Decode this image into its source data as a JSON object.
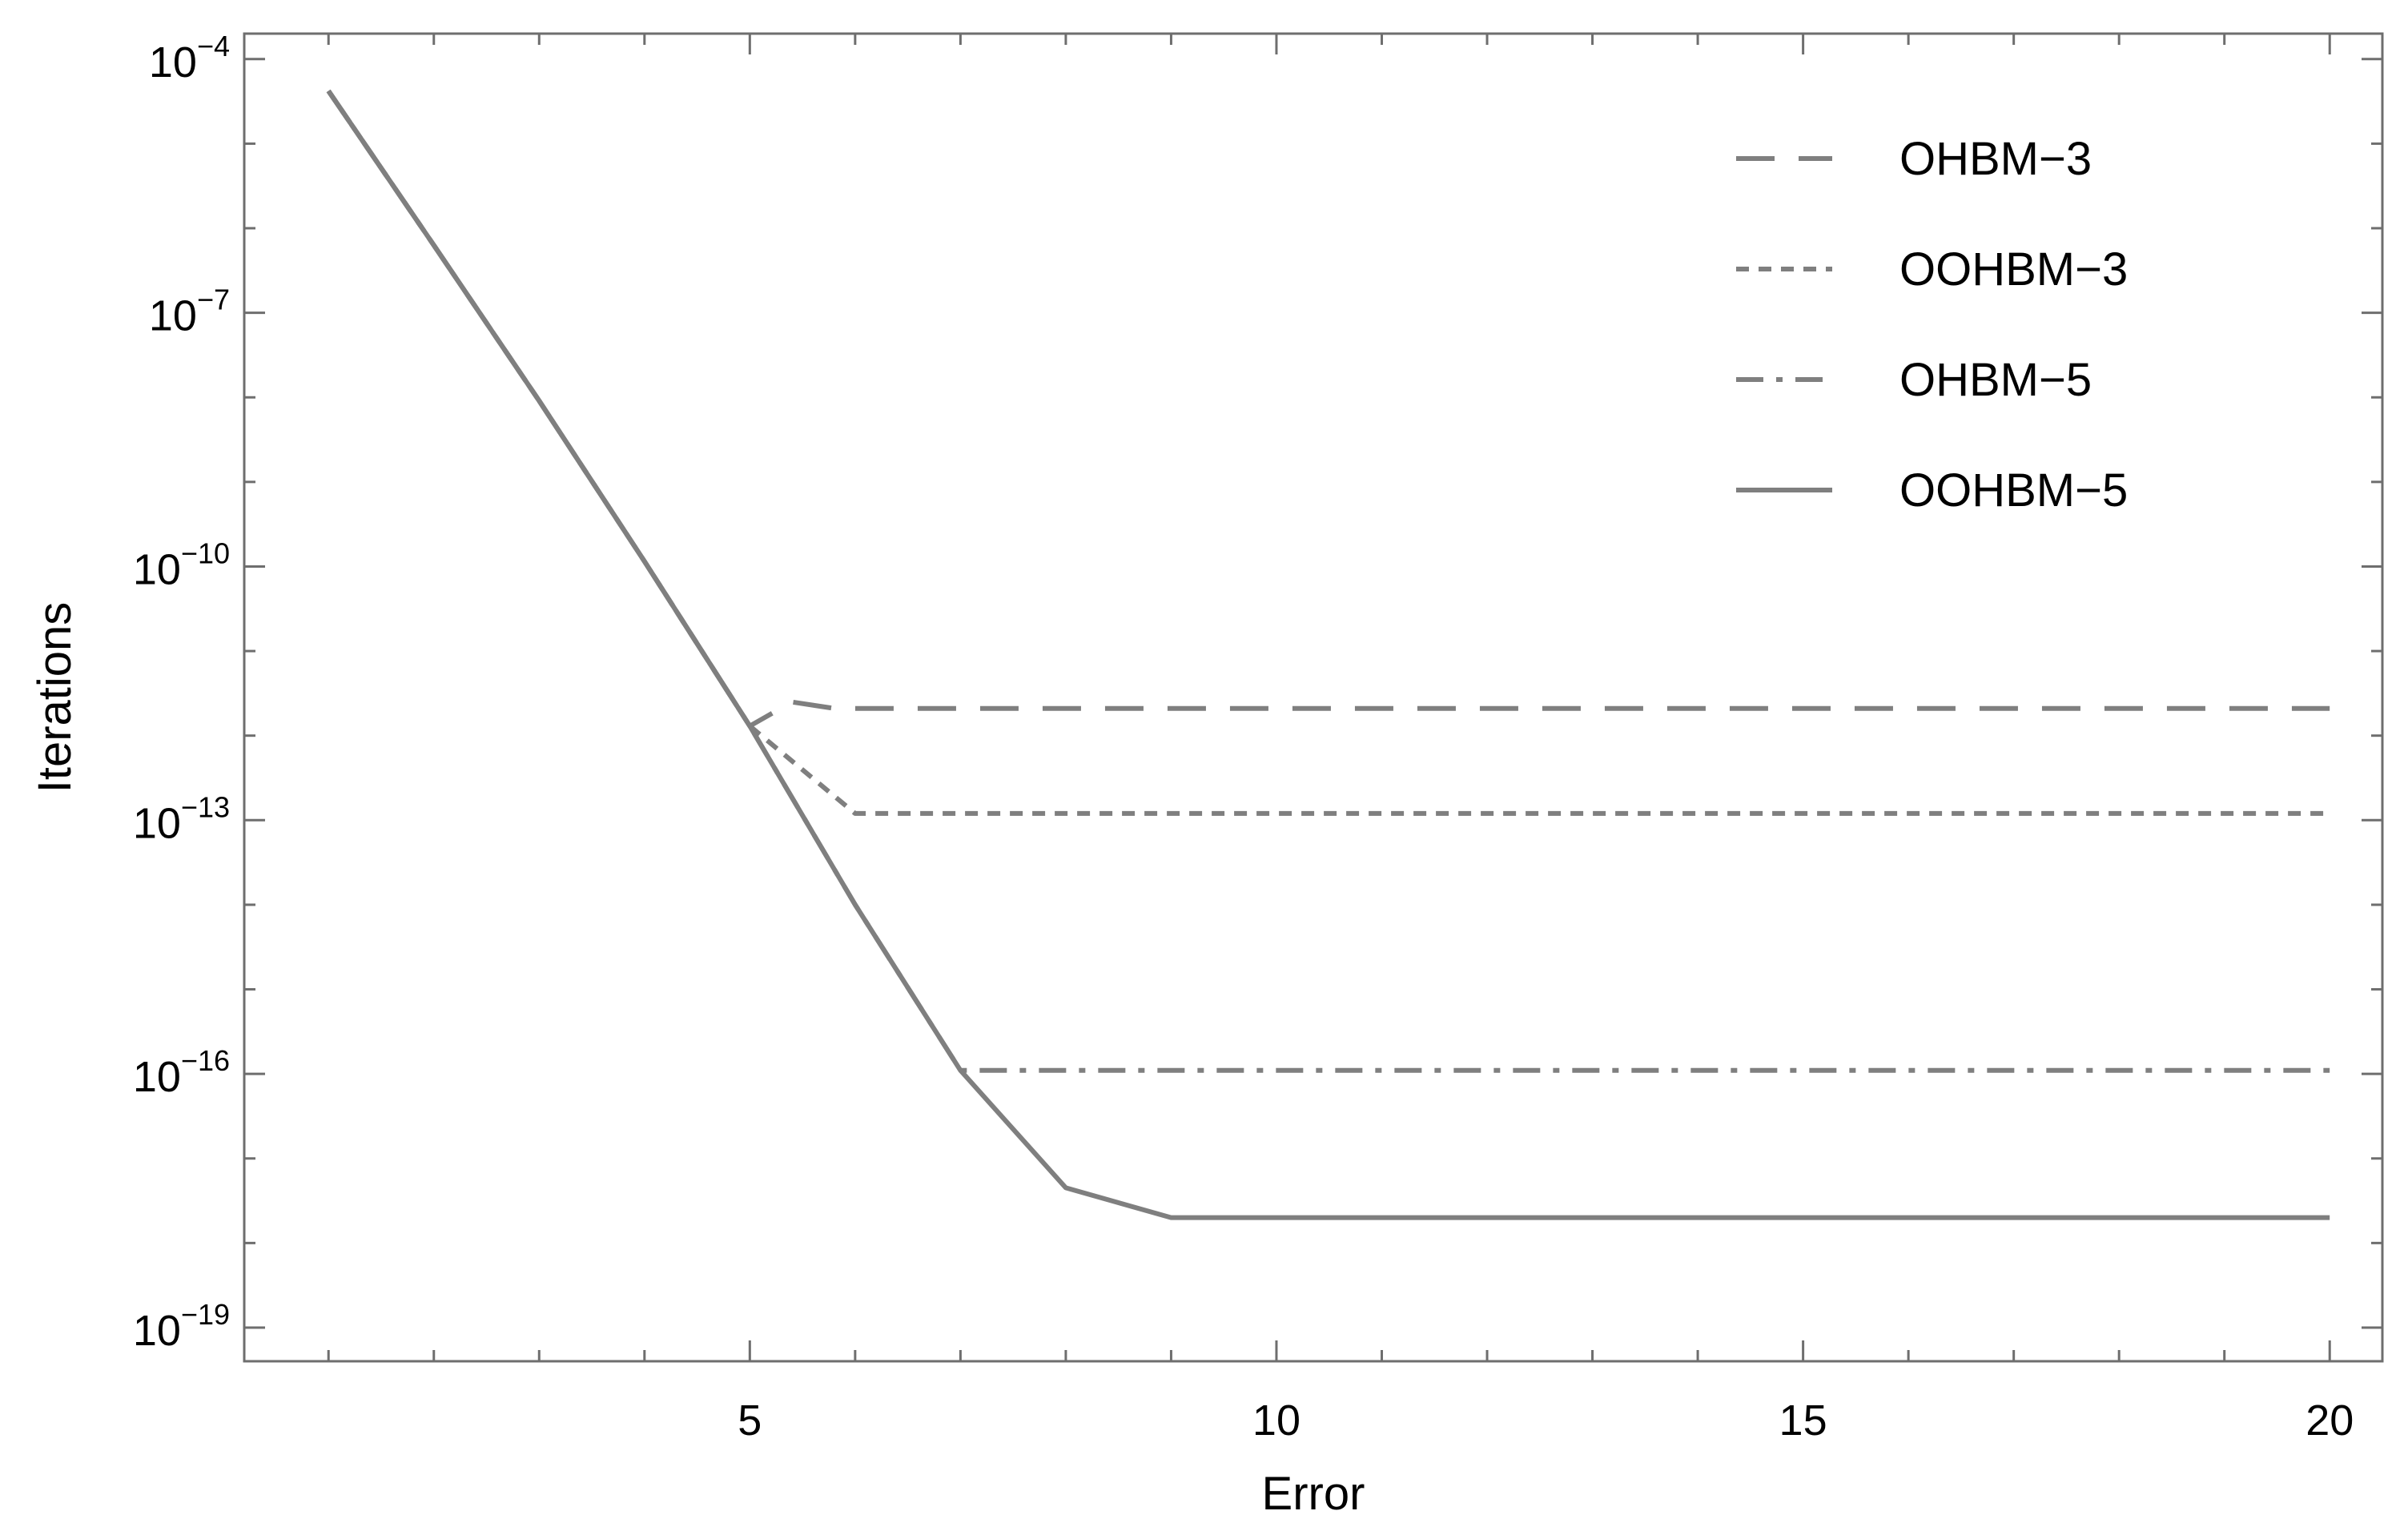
{
  "chart_data": {
    "type": "line",
    "xlabel": "Error",
    "ylabel": "Iterations",
    "x_scale": "linear",
    "y_scale": "log",
    "xlim": [
      0.2,
      20.5
    ],
    "ylim": [
      4e-20,
      0.0002
    ],
    "x_ticks": [
      5,
      10,
      15,
      20
    ],
    "x_tick_labels": [
      "5",
      "10",
      "15",
      "20"
    ],
    "y_ticks": [
      -4,
      -7,
      -10,
      -13,
      -16,
      -19
    ],
    "y_tick_labels": [
      {
        "base": "10",
        "exp": "−4"
      },
      {
        "base": "10",
        "exp": "−7"
      },
      {
        "base": "10",
        "exp": "−10"
      },
      {
        "base": "10",
        "exp": "−13"
      },
      {
        "base": "10",
        "exp": "−16"
      },
      {
        "base": "10",
        "exp": "−19"
      }
    ],
    "grid": false,
    "legend_position": "top-right",
    "line_color": "#7f7f7f",
    "series": [
      {
        "name": "OHBM−3",
        "dash": "dashed",
        "x": [
          1,
          2,
          3,
          4,
          5,
          5.4,
          5.8,
          20
        ],
        "y": [
          4.2e-05,
          6.3e-07,
          9.1e-09,
          1.15e-10,
          1.3e-12,
          2.5e-12,
          2.1e-12,
          2.1e-12
        ]
      },
      {
        "name": "OOHBM−3",
        "dash": "dotted",
        "x": [
          1,
          2,
          3,
          4,
          5,
          6,
          20
        ],
        "y": [
          4.2e-05,
          6.3e-07,
          9.1e-09,
          1.15e-10,
          1.3e-12,
          1.2e-13,
          1.2e-13
        ]
      },
      {
        "name": "OHBM−5",
        "dash": "dashdot",
        "x": [
          1,
          2,
          3,
          4,
          5,
          6,
          7,
          8,
          20
        ],
        "y": [
          4.2e-05,
          6.3e-07,
          9.1e-09,
          1.15e-10,
          1.3e-12,
          1e-14,
          1.1e-16,
          1.1e-16,
          1.1e-16
        ]
      },
      {
        "name": "OOHBM−5",
        "dash": "solid",
        "x": [
          1,
          2,
          3,
          4,
          5,
          6,
          7,
          8,
          9,
          20
        ],
        "y": [
          4.2e-05,
          6.3e-07,
          9.1e-09,
          1.15e-10,
          1.3e-12,
          1e-14,
          1.1e-16,
          4.5e-18,
          2e-18,
          2e-18
        ]
      }
    ]
  }
}
